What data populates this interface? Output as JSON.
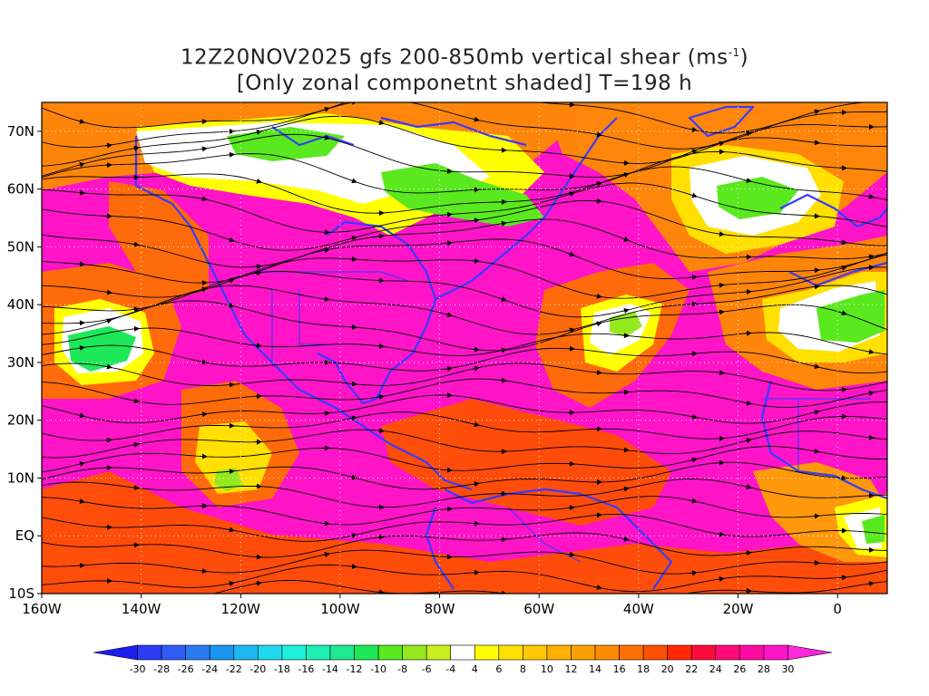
{
  "title": {
    "line1_prefix": "12Z20NOV2025 gfs 200-850mb vertical shear (ms",
    "line1_sup": "-1",
    "line1_suffix": ")",
    "line2": "[Only zonal componetnt shaded] T=198 h"
  },
  "map": {
    "lon_range": [
      -160,
      10
    ],
    "lat_range": [
      -10,
      75
    ],
    "lat_ticks": [
      {
        "value": 70,
        "label": "70N"
      },
      {
        "value": 60,
        "label": "60N"
      },
      {
        "value": 50,
        "label": "50N"
      },
      {
        "value": 40,
        "label": "40N"
      },
      {
        "value": 30,
        "label": "30N"
      },
      {
        "value": 20,
        "label": "20N"
      },
      {
        "value": 10,
        "label": "10N"
      },
      {
        "value": 0,
        "label": "EQ"
      },
      {
        "value": -10,
        "label": "10S"
      }
    ],
    "lon_ticks": [
      {
        "value": -160,
        "label": "160W"
      },
      {
        "value": -140,
        "label": "140W"
      },
      {
        "value": -120,
        "label": "120W"
      },
      {
        "value": -100,
        "label": "100W"
      },
      {
        "value": -80,
        "label": "80W"
      },
      {
        "value": -60,
        "label": "60W"
      },
      {
        "value": -40,
        "label": "40W"
      },
      {
        "value": -20,
        "label": "20W"
      },
      {
        "value": 0,
        "label": "0"
      }
    ],
    "coastline_color": "#3a3aff",
    "streamline_color": "#000000",
    "grid_lines": "dotted white"
  },
  "colorbar": {
    "labels": [
      "-30",
      "-28",
      "-26",
      "-24",
      "-22",
      "-20",
      "-18",
      "-16",
      "-14",
      "-12",
      "-10",
      "-8",
      "-6",
      "-4",
      "4",
      "6",
      "8",
      "10",
      "12",
      "14",
      "16",
      "18",
      "20",
      "22",
      "24",
      "26",
      "28",
      "30"
    ],
    "colors": [
      "#1e1ef0",
      "#2e3cf5",
      "#2f5cf5",
      "#2a7af0",
      "#1896f0",
      "#1cb8f0",
      "#20d8f0",
      "#1ef0dc",
      "#1ef0b4",
      "#1ee890",
      "#1ee85a",
      "#5ae81e",
      "#96e81e",
      "#c8f01e",
      "#ffffff",
      "#ffff00",
      "#ffe000",
      "#ffc800",
      "#ffb000",
      "#ffa000",
      "#ff8c00",
      "#ff7000",
      "#ff5000",
      "#ff2800",
      "#ff0a3c",
      "#ff0a78",
      "#ff0aa0",
      "#ff14c8",
      "#ff28dc"
    ]
  }
}
